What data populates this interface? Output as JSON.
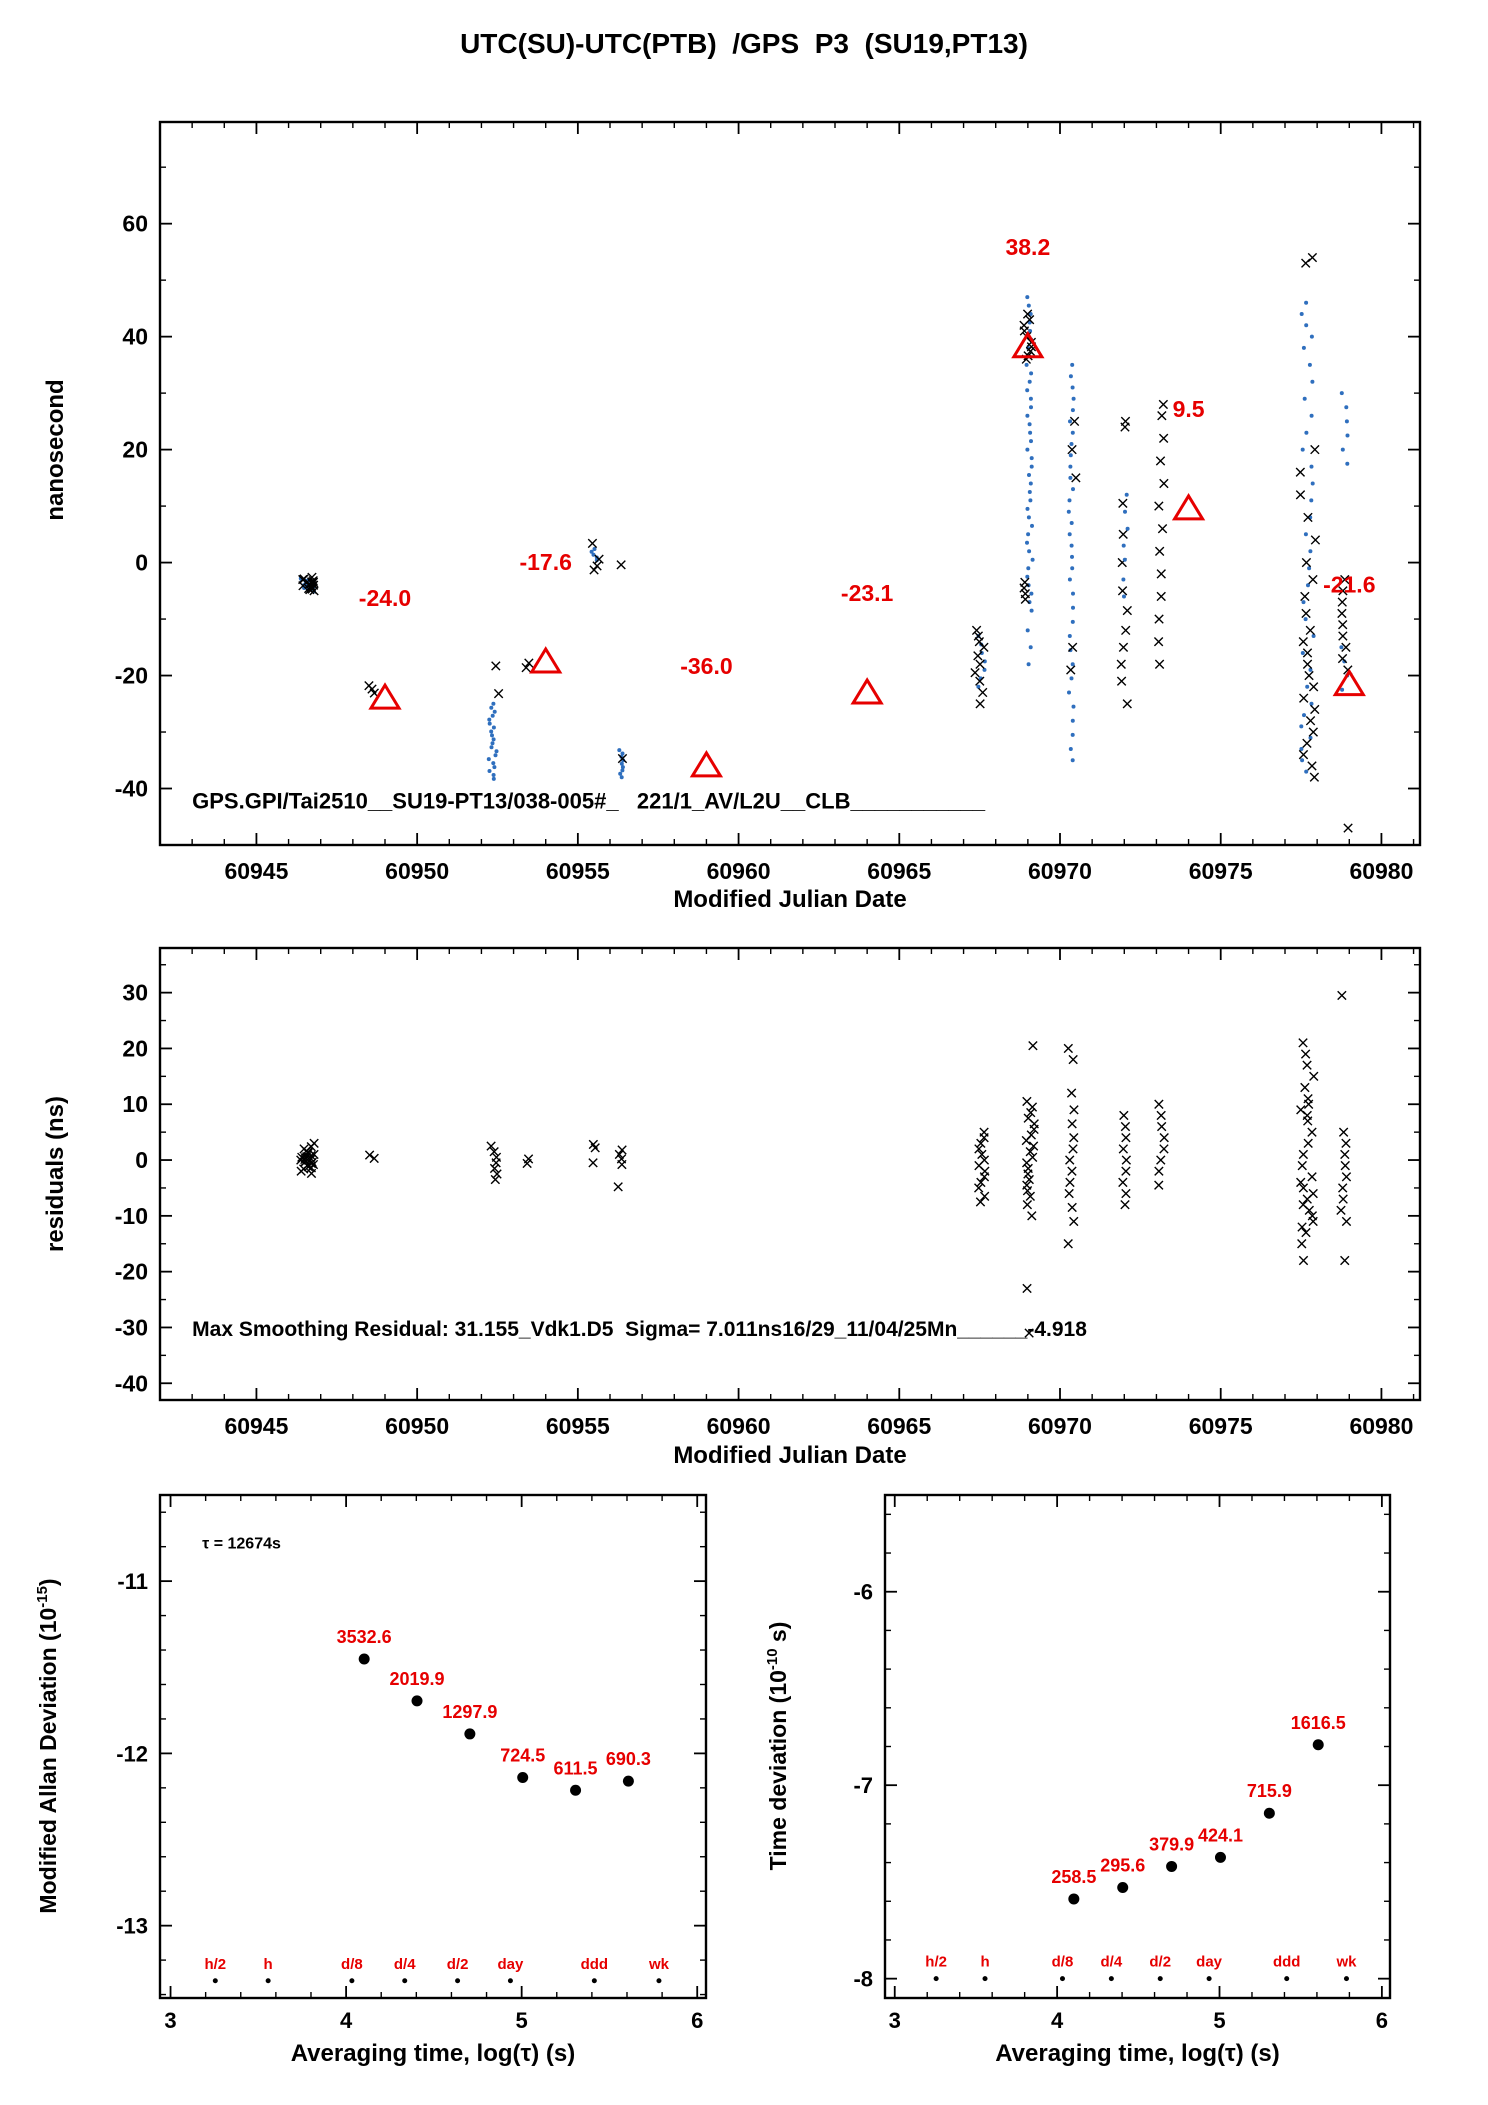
{
  "labels": {
    "title": "UTC(SU)-UTC(PTB)  /GPS  P3  (SU19,PT13)",
    "main": {
      "xlabel": "Modified Julian Date",
      "ylabel": "nanosecond"
    },
    "residuals": {
      "xlabel": "Modified Julian Date",
      "ylabel": "residuals (ns)"
    },
    "mdev": {
      "xlabel": "Averaging time, log(τ) (s)",
      "ylabel_pre": "Modified Allan Deviation (10",
      "ylabel_sup": "-15",
      "ylabel_post": ")"
    },
    "tdev": {
      "xlabel": "Averaging time, log(τ) (s)",
      "ylabel_pre": "Time deviation (10",
      "ylabel_sup": "-10",
      "ylabel_post": " s)"
    }
  },
  "colors": {
    "red": "#e60000",
    "blue": "#2f6fbe",
    "black": "#000000"
  },
  "chart_data": [
    {
      "id": "main",
      "type": "scatter",
      "title": "UTC(SU)-UTC(PTB) /GPS P3 (SU19,PT13)",
      "xlabel": "Modified Julian Date",
      "ylabel": "nanosecond",
      "xlim": [
        60942.0,
        60981.2
      ],
      "ylim": [
        -50,
        78
      ],
      "xticks": [
        60945,
        60950,
        60955,
        60960,
        60965,
        60970,
        60975,
        60980
      ],
      "yticks": [
        -40,
        -20,
        0,
        20,
        40,
        60
      ],
      "x_minor": 1,
      "y_minor": 10,
      "annotations": [
        {
          "x": 60943.0,
          "y": -43.5,
          "size": 22,
          "color": "#000000",
          "text": "GPS.GPI/Tai2510__SU19-PT13/038-005#_   221/1_AV/L2U__CLB___________"
        }
      ],
      "triangles": [
        {
          "x": 60949,
          "y": -24.0,
          "label": "-24.0"
        },
        {
          "x": 60954,
          "y": -17.6,
          "label": "-17.6"
        },
        {
          "x": 60959,
          "y": -36.0,
          "label": "-36.0"
        },
        {
          "x": 60964,
          "y": -23.1,
          "label": "-23.1"
        },
        {
          "x": 60969,
          "y": 38.2,
          "label": "38.2"
        },
        {
          "x": 60974,
          "y": 9.5,
          "label": "9.5"
        },
        {
          "x": 60979,
          "y": -21.6,
          "label": "-21.6"
        }
      ],
      "clusters": [
        {
          "x": 60946.6,
          "sx": 0.22,
          "marker": "dot",
          "ys": [
            -2.8,
            -3.2,
            -3.5,
            -3.9,
            -4.3,
            -4.7,
            -3.1,
            -3.6,
            -4.0,
            -4.5,
            -2.9,
            -3.4,
            -3.8,
            -4.2,
            -4.6,
            -5.1,
            -3.3,
            -3.7
          ]
        },
        {
          "x": 60946.6,
          "sx": 0.2,
          "marker": "x",
          "ys": [
            -2.6,
            -3.0,
            -3.4,
            -3.8,
            -4.2,
            -4.6,
            -5.0,
            -3.2,
            -3.6,
            -4.0,
            -4.4,
            -4.8,
            -2.9,
            -3.5,
            -4.1,
            -4.7
          ]
        },
        {
          "x": 60948.6,
          "sx": 0.12,
          "marker": "x",
          "ys": [
            -21.8,
            -22.4,
            -23.1
          ]
        },
        {
          "x": 60952.35,
          "sx": 0.12,
          "marker": "dot",
          "ys": [
            -25.0,
            -25.7,
            -26.4,
            -27.1,
            -27.8,
            -28.5,
            -29.2,
            -29.9,
            -30.6,
            -31.3,
            -32.0,
            -32.7,
            -33.4,
            -34.1,
            -34.8,
            -35.5,
            -36.2,
            -36.9,
            -37.6,
            -38.3
          ]
        },
        {
          "x": 60952.55,
          "sx": 0.15,
          "marker": "x",
          "ys": [
            -18.3,
            -23.2
          ]
        },
        {
          "x": 60953.45,
          "sx": 0.1,
          "marker": "x",
          "ys": [
            -17.8,
            -18.6
          ]
        },
        {
          "x": 60955.5,
          "sx": 0.12,
          "marker": "dot",
          "ys": [
            0.4,
            0.9,
            1.4,
            1.9,
            2.4
          ]
        },
        {
          "x": 60955.55,
          "sx": 0.18,
          "marker": "x",
          "ys": [
            3.4,
            0.6,
            -0.6,
            -1.3
          ]
        },
        {
          "x": 60956.35,
          "sx": 0.08,
          "marker": "dot",
          "ys": [
            -33.2,
            -33.8,
            -34.4,
            -35.0,
            -35.6,
            -36.2,
            -36.8,
            -37.4,
            -38.0
          ]
        },
        {
          "x": 60956.4,
          "sx": 0.1,
          "marker": "x",
          "ys": [
            -0.4,
            -34.7
          ]
        },
        {
          "x": 60967.55,
          "sx": 0.12,
          "marker": "dot",
          "ys": [
            -13.0,
            -14.5,
            -16.0,
            -17.5,
            -19.0,
            -20.5,
            -22.0
          ]
        },
        {
          "x": 60967.5,
          "sx": 0.15,
          "marker": "x",
          "ys": [
            -12.0,
            -13.0,
            -14.0,
            -15.0,
            -16.5,
            -18.0,
            -19.5,
            -21.0,
            -23.0,
            -25.0
          ]
        },
        {
          "x": 60969.05,
          "sx": 0.1,
          "marker": "dot",
          "ys": [
            47.0,
            45.5,
            44.0,
            42.5,
            41.0,
            39.5,
            38.0,
            36.5,
            35.0,
            33.5,
            32.0,
            30.5,
            29.0,
            27.5,
            26.0,
            24.5,
            23.0,
            21.5,
            20.0,
            18.5,
            17.0,
            15.5,
            14.0,
            12.5,
            11.0,
            9.5,
            8.0,
            6.5,
            5.0,
            3.5,
            2.0,
            0.5,
            -1.0,
            -2.5,
            -4.0,
            -5.5,
            -7.0,
            -8.5,
            -12.0,
            -15.0,
            -18.0
          ]
        },
        {
          "x": 60969.0,
          "sx": 0.12,
          "marker": "x",
          "ys": [
            44.0,
            43.0,
            42.0,
            41.0,
            40.0,
            39.0,
            38.2,
            37.4,
            36.6,
            36.0,
            -3.5,
            -4.5,
            -5.5,
            -6.5
          ]
        },
        {
          "x": 60970.35,
          "sx": 0.08,
          "marker": "dot",
          "ys": [
            35.0,
            33.0,
            31.0,
            29.0,
            27.0,
            25.0,
            23.0,
            21.0,
            19.0,
            17.0,
            15.0,
            13.0,
            11.0,
            9.0,
            7.0,
            5.0,
            3.0,
            1.0,
            -1.0,
            -3.0,
            -5.5,
            -8.0,
            -10.5,
            -13.0,
            -15.5,
            -18.0,
            -20.5,
            -23.0,
            -25.5,
            -28.0,
            -30.5,
            -33.0,
            -35.0
          ]
        },
        {
          "x": 60970.4,
          "sx": 0.12,
          "marker": "x",
          "ys": [
            25.0,
            20.0,
            15.0,
            -15.0,
            -19.0
          ]
        },
        {
          "x": 60972.0,
          "sx": 0.12,
          "marker": "x",
          "ys": [
            25.0,
            24.0,
            10.5,
            5.0,
            0.0,
            -5.0,
            -8.5,
            -12.0,
            -15.0,
            -18.0,
            -21.0,
            -25.0
          ]
        },
        {
          "x": 60972.05,
          "sx": 0.1,
          "marker": "dot",
          "ys": [
            12.0,
            9.0,
            6.0,
            3.0,
            0.5,
            -3.0,
            -6.0
          ]
        },
        {
          "x": 60973.15,
          "sx": 0.1,
          "marker": "x",
          "ys": [
            28.0,
            26.0,
            22.0,
            18.0,
            14.0,
            10.0,
            6.0,
            2.0,
            -2.0,
            -6.0,
            -10.0,
            -14.0,
            -18.0
          ]
        },
        {
          "x": 60977.7,
          "sx": 0.2,
          "marker": "dot",
          "ys": [
            46.0,
            44.0,
            42.0,
            40.0,
            38.0,
            35.0,
            32.0,
            29.0,
            26.0,
            23.0,
            20.0,
            17.0,
            14.0,
            11.0,
            8.0,
            5.0,
            2.0,
            -1.0,
            -4.0,
            -7.0,
            -10.0,
            -13.0,
            -16.0,
            -19.0,
            -22.0,
            -25.0,
            -27.0,
            -29.0,
            -31.0,
            -33.0,
            -35.0,
            -37.0
          ]
        },
        {
          "x": 60977.7,
          "sx": 0.25,
          "marker": "x",
          "ys": [
            54.0,
            53.0,
            20.0,
            16.0,
            12.0,
            8.0,
            4.0,
            0.0,
            -3.0,
            -6.0,
            -9.0,
            -12.0,
            -14.0,
            -16.0,
            -18.0,
            -20.0,
            -22.0,
            -24.0,
            -26.0,
            -28.0,
            -30.0,
            -32.0,
            -34.0,
            -36.0,
            -38.0
          ]
        },
        {
          "x": 60978.85,
          "sx": 0.1,
          "marker": "dot",
          "ys": [
            30.0,
            27.5,
            25.0,
            22.5,
            20.0,
            17.5,
            -15.0,
            -17.5,
            -20.0,
            -22.5
          ]
        },
        {
          "x": 60978.85,
          "sx": 0.12,
          "marker": "x",
          "ys": [
            -3.0,
            -5.0,
            -7.0,
            -9.0,
            -11.0,
            -13.0,
            -15.0,
            -17.0,
            -19.0,
            -47.0
          ]
        }
      ]
    },
    {
      "id": "residuals",
      "type": "scatter",
      "xlabel": "Modified Julian Date",
      "ylabel": "residuals (ns)",
      "xlim": [
        60942.0,
        60981.2
      ],
      "ylim": [
        -43,
        38
      ],
      "xticks": [
        60945,
        60950,
        60955,
        60960,
        60965,
        60970,
        60975,
        60980
      ],
      "yticks": [
        -40,
        -30,
        -20,
        -10,
        0,
        10,
        20,
        30
      ],
      "x_minor": 1,
      "y_minor": 5,
      "annotations": [
        {
          "x": 60943.0,
          "y": -31.5,
          "size": 21,
          "color": "#000000",
          "text": "Max Smoothing Residual: 31.155_Vdk1.D5  Sigma= 7.011ns16/29_11/04/25Mn______-4.918"
        }
      ],
      "triangles": [],
      "clusters": [
        {
          "x": 60946.6,
          "sx": 0.22,
          "marker": "x",
          "ys": [
            0.0,
            0.4,
            -0.4,
            0.8,
            -0.8,
            1.2,
            -1.2,
            1.6,
            -1.6,
            2.0,
            -2.0,
            0.2,
            -0.2,
            0.6,
            -0.6,
            1.0,
            -1.0,
            1.4,
            -1.4,
            2.4,
            -2.4,
            0.1,
            -0.3,
            0.5,
            3.0
          ]
        },
        {
          "x": 60948.6,
          "sx": 0.1,
          "marker": "x",
          "ys": [
            0.3,
            0.9
          ]
        },
        {
          "x": 60952.4,
          "sx": 0.12,
          "marker": "x",
          "ys": [
            2.5,
            1.5,
            0.5,
            -0.5,
            -1.5,
            -2.5,
            -3.5
          ]
        },
        {
          "x": 60953.45,
          "sx": 0.08,
          "marker": "x",
          "ys": [
            0.2,
            -0.6
          ]
        },
        {
          "x": 60955.55,
          "sx": 0.1,
          "marker": "x",
          "ys": [
            2.8,
            2.2,
            -0.5
          ]
        },
        {
          "x": 60956.35,
          "sx": 0.1,
          "marker": "x",
          "ys": [
            1.8,
            1.0,
            0.2,
            -0.8,
            -4.8
          ]
        },
        {
          "x": 60967.55,
          "sx": 0.12,
          "marker": "x",
          "ys": [
            5.0,
            4.0,
            3.0,
            2.0,
            1.0,
            0.0,
            -1.0,
            -2.0,
            -3.0,
            -4.0,
            -5.0,
            -6.5,
            -7.5
          ]
        },
        {
          "x": 60969.05,
          "sx": 0.15,
          "marker": "x",
          "ys": [
            10.5,
            9.5,
            8.5,
            7.5,
            6.5,
            5.5,
            4.5,
            3.5,
            2.5,
            1.5,
            0.5,
            -0.5,
            -1.5,
            -2.5,
            -3.5,
            -4.5,
            -5.5,
            -6.5,
            -8.0,
            -10.0,
            20.5,
            -23.0,
            -31.0
          ]
        },
        {
          "x": 60970.35,
          "sx": 0.12,
          "marker": "x",
          "ys": [
            20.0,
            18.0,
            12.0,
            9.0,
            6.5,
            4.0,
            2.0,
            0.0,
            -2.0,
            -4.0,
            -6.0,
            -8.5,
            -11.0,
            -15.0
          ]
        },
        {
          "x": 60972.05,
          "sx": 0.12,
          "marker": "x",
          "ys": [
            8.0,
            6.0,
            4.0,
            2.0,
            0.0,
            -2.0,
            -4.0,
            -6.0,
            -8.0
          ]
        },
        {
          "x": 60973.15,
          "sx": 0.1,
          "marker": "x",
          "ys": [
            10.0,
            8.0,
            6.0,
            4.0,
            2.0,
            0.0,
            -2.0,
            -4.5
          ]
        },
        {
          "x": 60977.7,
          "sx": 0.22,
          "marker": "x",
          "ys": [
            21.0,
            19.0,
            17.0,
            15.0,
            13.0,
            11.0,
            9.0,
            7.0,
            5.0,
            3.0,
            1.0,
            -1.0,
            -3.0,
            -5.0,
            -7.0,
            -9.0,
            -11.0,
            -13.0,
            -15.0,
            -18.0,
            -6.0,
            -8.0,
            -10.0,
            -4.0,
            -12.0,
            10.0,
            8.0
          ]
        },
        {
          "x": 60978.85,
          "sx": 0.12,
          "marker": "x",
          "ys": [
            29.5,
            5.0,
            3.0,
            1.0,
            -1.0,
            -3.0,
            -5.0,
            -7.0,
            -9.0,
            -11.0,
            -18.0
          ]
        }
      ]
    },
    {
      "id": "mdev",
      "type": "scatter",
      "xlabel": "Averaging time, log(τ) (s)",
      "ylabel": "Modified Allan Deviation (10^-15)",
      "xlim": [
        2.94,
        6.05
      ],
      "ylim": [
        -13.42,
        -10.5
      ],
      "xticks": [
        3,
        4,
        5,
        6
      ],
      "yticks": [
        -11,
        -12,
        -13
      ],
      "x_minor": 0.2,
      "y_minor": 0.2,
      "annotations": [
        {
          "x": 3.18,
          "y": -10.81,
          "size": 16,
          "color": "#000000",
          "text": "τ = 12674s"
        }
      ],
      "points": [
        {
          "x": 4.103,
          "y": -11.452,
          "label": "3532.6"
        },
        {
          "x": 4.404,
          "y": -11.695,
          "label": "2019.9"
        },
        {
          "x": 4.705,
          "y": -11.887,
          "label": "1297.9"
        },
        {
          "x": 5.006,
          "y": -12.14,
          "label": "724.5"
        },
        {
          "x": 5.307,
          "y": -12.214,
          "label": "611.5"
        },
        {
          "x": 5.608,
          "y": -12.161,
          "label": "690.3"
        }
      ],
      "tau_marks": {
        "y": -13.32,
        "items": [
          {
            "x": 3.255,
            "label": "h/2"
          },
          {
            "x": 3.556,
            "label": "h"
          },
          {
            "x": 4.033,
            "label": "d/8"
          },
          {
            "x": 4.334,
            "label": "d/4"
          },
          {
            "x": 4.635,
            "label": "d/2"
          },
          {
            "x": 4.936,
            "label": "day"
          },
          {
            "x": 5.414,
            "label": "ddd"
          },
          {
            "x": 5.782,
            "label": "wk"
          }
        ]
      }
    },
    {
      "id": "tdev",
      "type": "scatter",
      "xlabel": "Averaging time, log(τ) (s)",
      "ylabel": "Time deviation (10^-10 s)",
      "xlim": [
        2.94,
        6.05
      ],
      "ylim": [
        -8.1,
        -5.5
      ],
      "xticks": [
        3,
        4,
        5,
        6
      ],
      "yticks": [
        -6,
        -7,
        -8
      ],
      "x_minor": 0.2,
      "y_minor": 0.2,
      "annotations": [],
      "points": [
        {
          "x": 4.103,
          "y": -7.588,
          "label": "258.5"
        },
        {
          "x": 4.404,
          "y": -7.529,
          "label": "295.6"
        },
        {
          "x": 4.705,
          "y": -7.42,
          "label": "379.9"
        },
        {
          "x": 5.006,
          "y": -7.373,
          "label": "424.1"
        },
        {
          "x": 5.307,
          "y": -7.145,
          "label": "715.9"
        },
        {
          "x": 5.608,
          "y": -6.791,
          "label": "1616.5"
        }
      ],
      "tau_marks": {
        "y": -8.0,
        "items": [
          {
            "x": 3.255,
            "label": "h/2"
          },
          {
            "x": 3.556,
            "label": "h"
          },
          {
            "x": 4.033,
            "label": "d/8"
          },
          {
            "x": 4.334,
            "label": "d/4"
          },
          {
            "x": 4.635,
            "label": "d/2"
          },
          {
            "x": 4.936,
            "label": "day"
          },
          {
            "x": 5.414,
            "label": "ddd"
          },
          {
            "x": 5.782,
            "label": "wk"
          }
        ]
      }
    }
  ]
}
